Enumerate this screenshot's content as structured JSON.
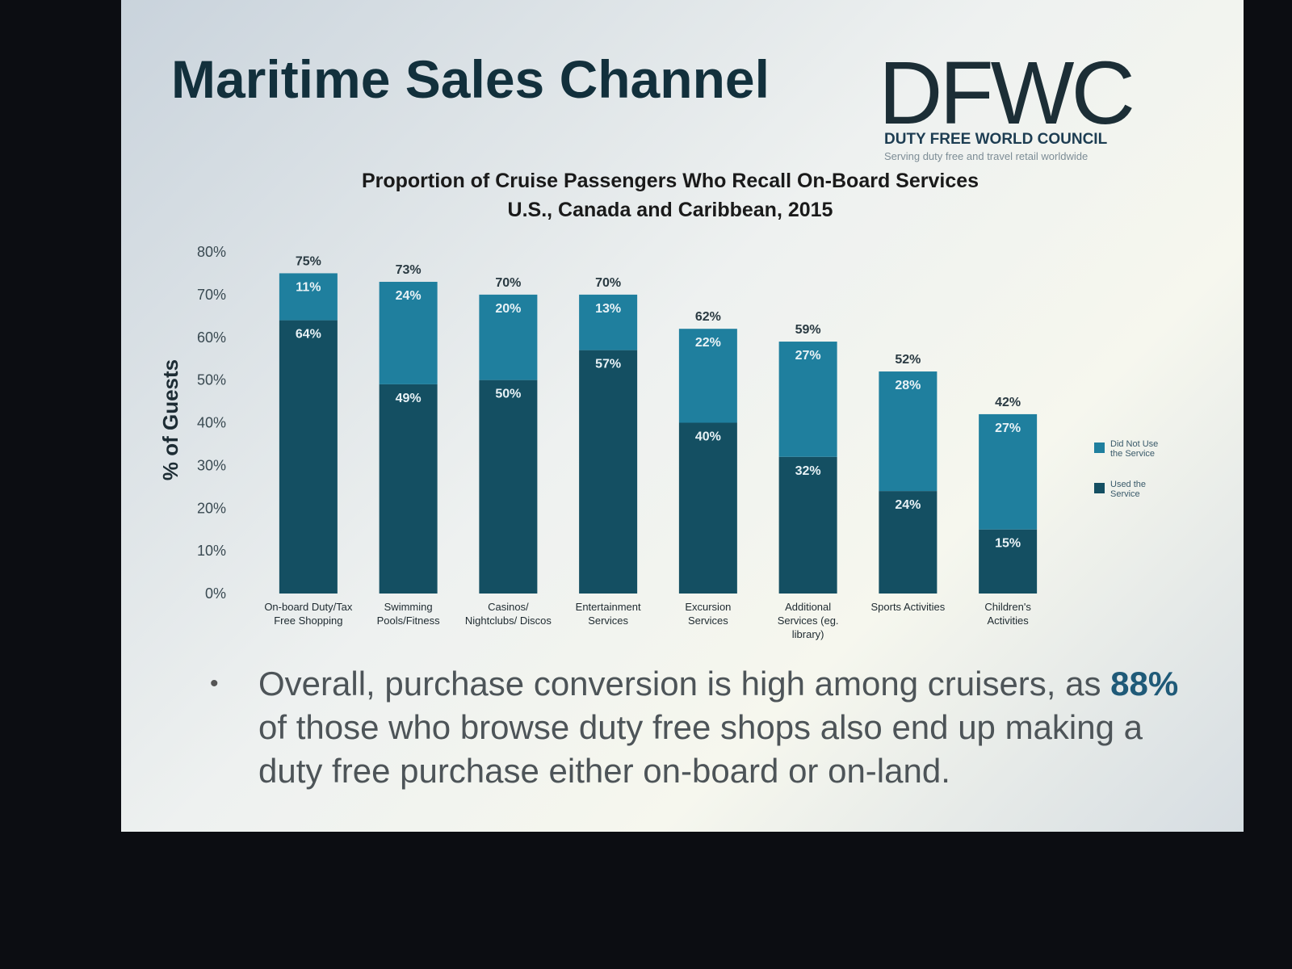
{
  "slide": {
    "title": "Maritime Sales Channel",
    "logo": {
      "mark": "DFWC",
      "name": "DUTY FREE WORLD COUNCIL",
      "tagline": "Serving duty free and travel retail worldwide"
    },
    "bullet": {
      "before": "Overall, purchase conversion is high among cruisers, as ",
      "highlight": "88%",
      "after": " of those who browse duty free shops also end up making a duty free purchase either on-board or on-land."
    }
  },
  "chart_data": {
    "type": "stacked_bar",
    "title": "Proportion of Cruise Passengers Who Recall On-Board Services",
    "subtitle": "U.S., Canada and Caribbean, 2015",
    "ylabel": "% of Guests",
    "categories": [
      "On-board Duty/Tax Free Shopping",
      "Swimming Pools/Fitness",
      "Casinos/ Nightclubs/ Discos",
      "Entertainment Services",
      "Excursion Services",
      "Additional Services (eg. library)",
      "Sports Activities",
      "Children's Activities"
    ],
    "series": [
      {
        "name": "Used the Service",
        "color": "#144f62",
        "values": [
          64,
          49,
          50,
          57,
          40,
          32,
          24,
          15
        ],
        "value_labels": [
          "64%",
          "49%",
          "50%",
          "57%",
          "40%",
          "32%",
          "24%",
          "15%"
        ]
      },
      {
        "name": "Did Not Use the Service",
        "color": "#1f7f9e",
        "values": [
          11,
          24,
          20,
          13,
          22,
          27,
          28,
          27
        ],
        "value_labels": [
          "11%",
          "24%",
          "20%",
          "13%",
          "22%",
          "27%",
          "28%",
          "27%"
        ]
      }
    ],
    "totals": [
      75,
      73,
      70,
      70,
      62,
      59,
      52,
      42
    ],
    "total_labels": [
      "75%",
      "73%",
      "70%",
      "70%",
      "62%",
      "59%",
      "52%",
      "42%"
    ],
    "ylim": [
      0,
      80
    ],
    "yticks": [
      {
        "value": 0,
        "label": "0%"
      },
      {
        "value": 10,
        "label": "10%"
      },
      {
        "value": 20,
        "label": "20%"
      },
      {
        "value": 30,
        "label": "30%"
      },
      {
        "value": 40,
        "label": "40%"
      },
      {
        "value": 50,
        "label": "50%"
      },
      {
        "value": 60,
        "label": "60%"
      },
      {
        "value": 70,
        "label": "70%"
      },
      {
        "value": 80,
        "label": "80%"
      }
    ],
    "legend": "right"
  }
}
